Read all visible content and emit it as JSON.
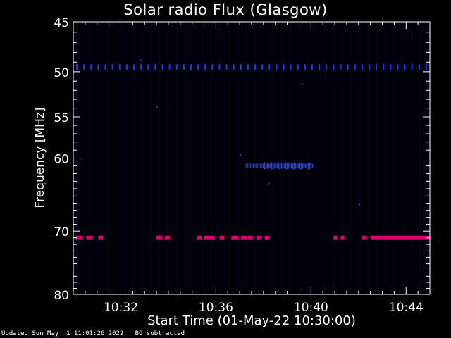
{
  "chart_data": {
    "type": "heatmap",
    "title": "Solar radio Flux (Glasgow)",
    "xlabel": "Start Time (01-May-22 10:30:00)",
    "ylabel": "Frequency [MHz]",
    "x_range_minutes": [
      0,
      15
    ],
    "x_ticks": [
      {
        "minute": 2,
        "label": "10:32"
      },
      {
        "minute": 6,
        "label": "10:36"
      },
      {
        "minute": 10,
        "label": "10:40"
      },
      {
        "minute": 14,
        "label": "10:44"
      }
    ],
    "y_scale": "log",
    "y_range": [
      45,
      80
    ],
    "y_ticks": [
      45,
      50,
      55,
      60,
      70,
      80
    ],
    "colors": {
      "background": "#000000",
      "interference_50": "#2233ff",
      "burst_61": "#2a3cff",
      "interference_71": "#e0006e",
      "axes": "#ffffff"
    },
    "features": [
      {
        "name": "interference_50",
        "frequency": 49.5,
        "kind": "dotted",
        "x_start": 0.15,
        "x_end": 15,
        "spacing_min": 0.3
      },
      {
        "name": "interference_71",
        "frequency": 71,
        "kind": "segments",
        "segments": [
          [
            0.1,
            0.4
          ],
          [
            0.55,
            0.8
          ],
          [
            1.05,
            1.25
          ],
          [
            3.5,
            3.75
          ],
          [
            3.85,
            4.05
          ],
          [
            5.2,
            5.4
          ],
          [
            5.5,
            5.95
          ],
          [
            6.15,
            6.35
          ],
          [
            6.65,
            6.95
          ],
          [
            7.05,
            7.3
          ],
          [
            7.35,
            7.55
          ],
          [
            7.7,
            7.9
          ],
          [
            8.05,
            8.25
          ],
          [
            10.95,
            11.1
          ],
          [
            11.25,
            11.4
          ],
          [
            12.15,
            12.35
          ],
          [
            12.5,
            15
          ]
        ]
      },
      {
        "name": "burst_61",
        "frequency": 61,
        "kind": "patch",
        "x_start": 7.2,
        "x_end": 10.1
      }
    ]
  },
  "footer": "Updated Sun May  1 11:01:26 2022   BG subtracted"
}
